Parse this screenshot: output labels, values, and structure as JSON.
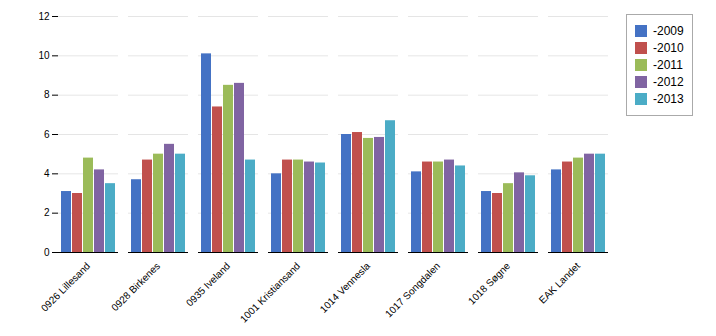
{
  "chart_data": {
    "type": "bar",
    "categories": [
      "0926 Lillesand",
      "0928 Birkenes",
      "0935 Iveland",
      "1001 Kristiansand",
      "1014 Vennesla",
      "1017 Songdalen",
      "1018 Søgne",
      "EAK Landet"
    ],
    "series": [
      {
        "name": "-2009",
        "color": "#4472C4",
        "values": [
          3.1,
          3.7,
          10.1,
          4.0,
          6.0,
          4.1,
          3.1,
          4.2
        ]
      },
      {
        "name": "-2010",
        "color": "#C0504D",
        "values": [
          3.0,
          4.7,
          7.4,
          4.7,
          6.1,
          4.6,
          3.0,
          4.6
        ]
      },
      {
        "name": "-2011",
        "color": "#9BBB59",
        "values": [
          4.8,
          5.0,
          8.5,
          4.7,
          5.8,
          4.6,
          3.5,
          4.8
        ]
      },
      {
        "name": "-2012",
        "color": "#8064A2",
        "values": [
          4.2,
          5.5,
          8.6,
          4.6,
          5.85,
          4.7,
          4.05,
          5.0
        ]
      },
      {
        "name": "-2013",
        "color": "#4BACC6",
        "values": [
          3.5,
          5.0,
          4.7,
          4.55,
          6.7,
          4.4,
          3.9,
          5.0
        ]
      }
    ],
    "ylim": [
      0,
      12
    ],
    "yticks": [
      0,
      2,
      4,
      6,
      8,
      10,
      12
    ],
    "grid": true,
    "legend": "right"
  }
}
